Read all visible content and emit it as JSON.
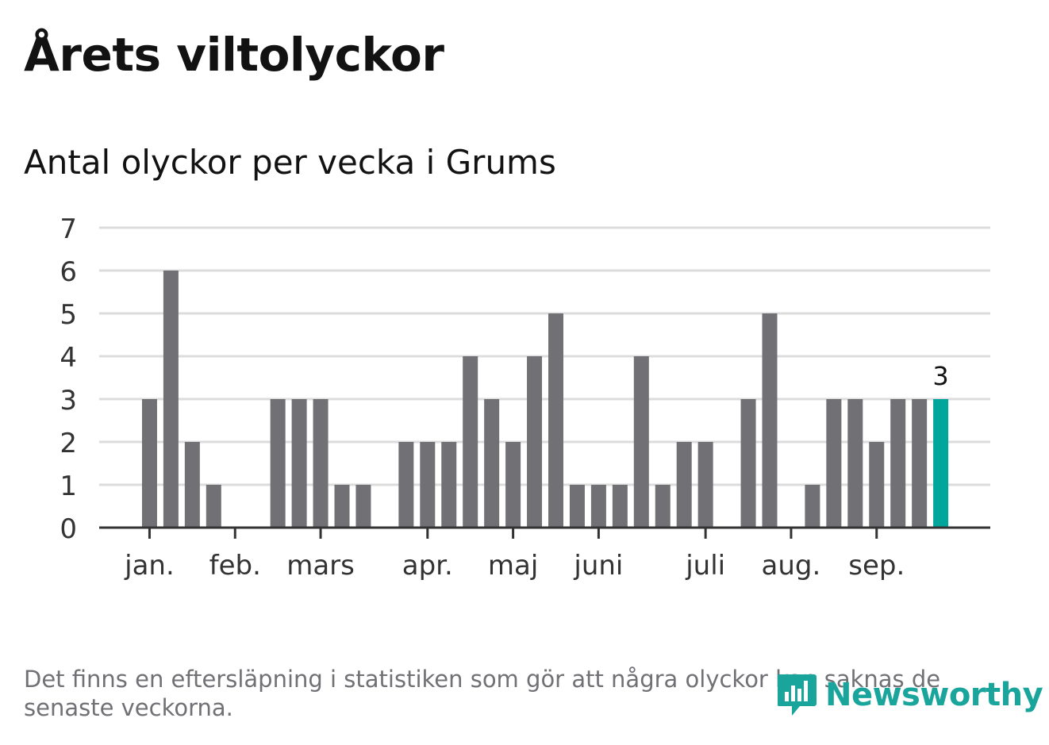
{
  "header": {
    "title": "Årets viltolyckor",
    "subtitle": "Antal olyckor per vecka i Grums"
  },
  "footer": {
    "note": "Det finns en eftersläpning i statistiken som gör att några olyckor kan saknas de senaste veckorna.",
    "brand": "Newsworthy"
  },
  "colors": {
    "bar": "#707075",
    "highlight": "#00a59b",
    "grid": "#dcdcdc",
    "axis": "#333333",
    "brand": "#19a59b"
  },
  "chart_data": {
    "type": "bar",
    "ylim": [
      0,
      7
    ],
    "yticks": [
      0,
      1,
      2,
      3,
      4,
      5,
      6,
      7
    ],
    "grid": true,
    "x_unit": "week",
    "month_labels": [
      "jan.",
      "feb.",
      "mars",
      "apr.",
      "maj",
      "juni",
      "juli",
      "aug.",
      "sep."
    ],
    "month_tick_week": [
      2,
      6,
      10,
      15,
      19,
      23,
      28,
      32,
      36
    ],
    "weeks": [
      1,
      2,
      3,
      4,
      5,
      6,
      7,
      8,
      9,
      10,
      11,
      12,
      13,
      14,
      15,
      16,
      17,
      18,
      19,
      20,
      21,
      22,
      23,
      24,
      25,
      26,
      27,
      28,
      29,
      30,
      31,
      32,
      33,
      34,
      35,
      36,
      37,
      38,
      39,
      40
    ],
    "values": [
      0,
      3,
      6,
      2,
      1,
      0,
      0,
      3,
      3,
      3,
      1,
      1,
      0,
      2,
      2,
      2,
      4,
      3,
      2,
      4,
      5,
      1,
      1,
      1,
      4,
      1,
      2,
      2,
      0,
      3,
      5,
      0,
      1,
      3,
      3,
      2,
      3,
      3,
      3,
      null
    ],
    "highlight_index": 38,
    "highlight_label": "3"
  }
}
